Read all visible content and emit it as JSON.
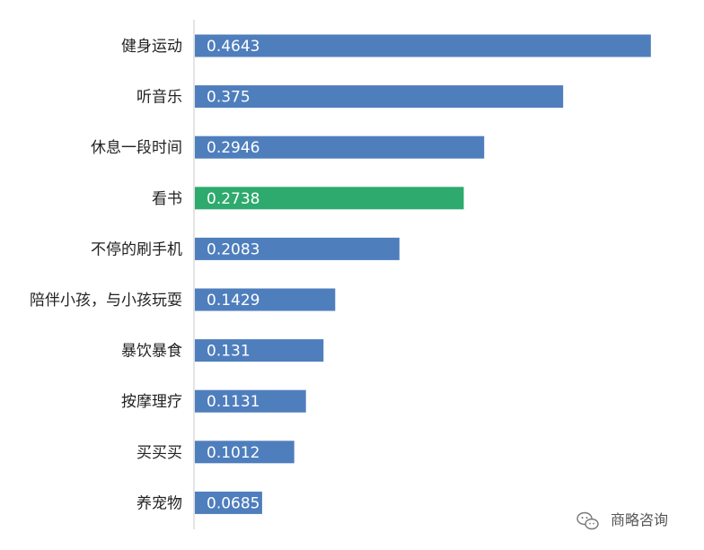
{
  "chart_data": {
    "type": "bar",
    "orientation": "horizontal",
    "categories": [
      "健身运动",
      "听音乐",
      "休息一段时间",
      "看书",
      "不停的刷手机",
      "陪伴小孩，与小孩玩耍",
      "暴饮暴食",
      "按摩理疗",
      "买买买",
      "养宠物"
    ],
    "values": [
      0.4643,
      0.375,
      0.2946,
      0.2738,
      0.2083,
      0.1429,
      0.131,
      0.1131,
      0.1012,
      0.0685
    ],
    "data_labels": [
      "0.4643",
      "0.375",
      "0.2946",
      "0.2738",
      "0.2083",
      "0.1429",
      "0.131",
      "0.1131",
      "0.1012",
      "0.0685"
    ],
    "xlim": [
      0,
      0.48
    ],
    "bar_color": "#4f7ebd",
    "highlight_color": "#2eaa6e",
    "highlight_index": 3,
    "axis_color": "#c8c8c8",
    "grid": false,
    "legend": "none"
  },
  "watermark": {
    "icon": "wechat-icon",
    "text": "商略咨询"
  }
}
